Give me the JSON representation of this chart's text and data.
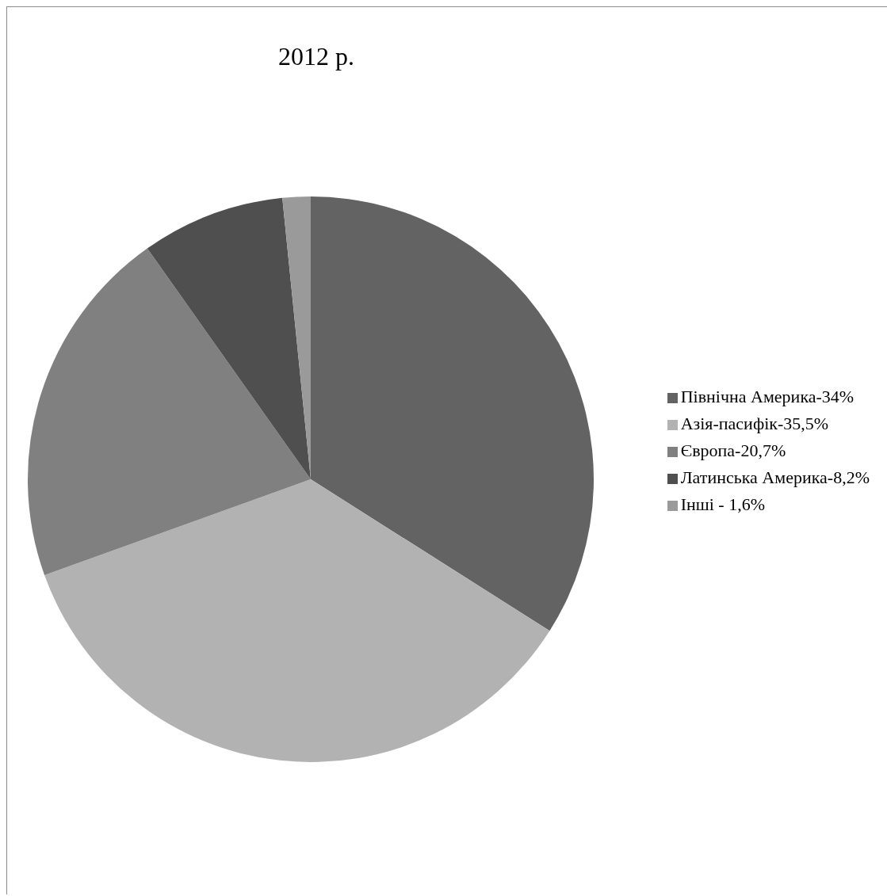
{
  "chart_data": {
    "type": "pie",
    "title": "2012 р.",
    "categories": [
      "Північна Америка-34%",
      "Азія-пасифік-35,5%",
      "Європа-20,7%",
      "Латинська Америка-8,2%",
      "Інші - 1,6%"
    ],
    "values": [
      34,
      35.5,
      20.7,
      8.2,
      1.6
    ],
    "colors": [
      "#636363",
      "#b2b2b2",
      "#808080",
      "#4f4f4f",
      "#9a9a9a"
    ],
    "legend": "right"
  }
}
